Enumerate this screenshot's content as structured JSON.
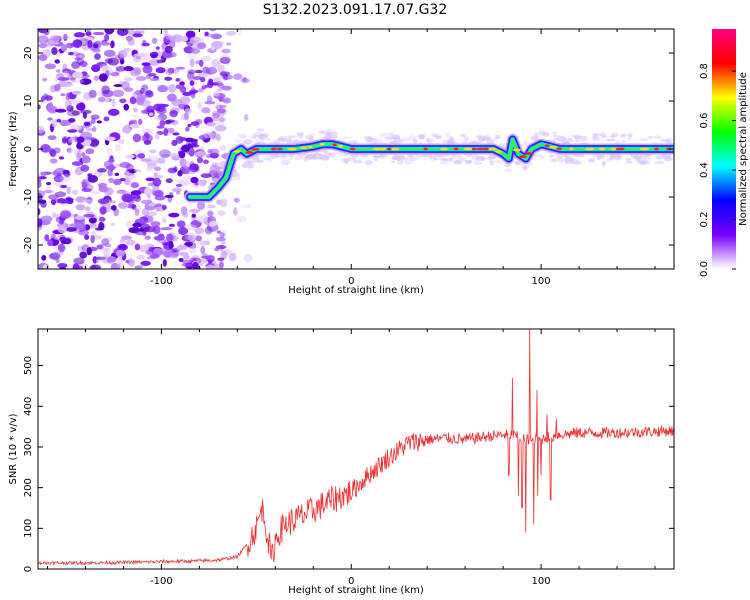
{
  "title": "S132.2023.091.17.07.G32",
  "chart_data": [
    {
      "type": "heatmap",
      "xlabel": "Height of straight line (km)",
      "ylabel": "Frequency (Hz)",
      "xlim": [
        -165,
        170
      ],
      "ylim": [
        -25,
        25
      ],
      "xticks": [
        -100,
        0,
        100
      ],
      "yticks": [
        -20,
        -10,
        0,
        10,
        20
      ],
      "colorbar": {
        "label": "Normalized spectral amplitude",
        "range": [
          0,
          0.97
        ],
        "ticks": [
          "0.0",
          "0.2",
          "0.4",
          "0.6",
          "0.8"
        ],
        "colormap": [
          "#ffffff",
          "#7a00ff",
          "#0000ff",
          "#00ffff",
          "#00ff00",
          "#ffff00",
          "#ff0000",
          "#ff0080"
        ]
      },
      "ridge": {
        "x": [
          -85,
          -75,
          -70,
          -66,
          -62,
          -58,
          -55,
          -50,
          -40,
          -30,
          -20,
          -15,
          -10,
          -5,
          0,
          20,
          40,
          60,
          75,
          80,
          83,
          85,
          88,
          92,
          95,
          100,
          110,
          130,
          150,
          170
        ],
        "y": [
          -10,
          -10,
          -8,
          -6,
          -1,
          0,
          -1,
          0,
          0,
          0,
          0.5,
          1,
          1,
          0.5,
          0,
          0,
          0,
          0,
          0,
          -1,
          -2,
          2,
          -1,
          -2,
          0,
          1,
          0,
          0,
          0,
          0
        ]
      }
    },
    {
      "type": "line",
      "xlabel": "Height of straight line (km)",
      "ylabel": "SNR (10 * v/v)",
      "xlim": [
        -165,
        170
      ],
      "ylim": [
        0,
        590
      ],
      "xticks": [
        -100,
        0,
        100
      ],
      "yticks": [
        0,
        100,
        200,
        300,
        400,
        500
      ],
      "color": "#ee3030",
      "envelope": {
        "x": [
          -165,
          -140,
          -120,
          -100,
          -80,
          -70,
          -60,
          -55,
          -50,
          -47,
          -45,
          -42,
          -40,
          -38,
          -35,
          -30,
          -20,
          -10,
          0,
          10,
          20,
          30,
          40,
          50,
          60,
          70,
          80,
          85,
          90,
          95,
          100,
          105,
          110,
          120,
          140,
          170
        ],
        "y": [
          15,
          15,
          16,
          18,
          20,
          22,
          30,
          60,
          100,
          150,
          110,
          20,
          70,
          90,
          110,
          120,
          145,
          170,
          190,
          235,
          275,
          310,
          318,
          322,
          318,
          325,
          330,
          330,
          320,
          315,
          320,
          325,
          330,
          335,
          335,
          340
        ]
      },
      "spikes": [
        {
          "x": 83,
          "lo": 230,
          "hi": 420
        },
        {
          "x": 85,
          "lo": 210,
          "hi": 470
        },
        {
          "x": 88,
          "lo": 180,
          "hi": 480
        },
        {
          "x": 90,
          "lo": 150,
          "hi": 510
        },
        {
          "x": 92,
          "lo": 90,
          "hi": 545
        },
        {
          "x": 94,
          "lo": 60,
          "hi": 590
        },
        {
          "x": 96,
          "lo": 110,
          "hi": 510
        },
        {
          "x": 98,
          "lo": 180,
          "hi": 440
        },
        {
          "x": 100,
          "lo": 230,
          "hi": 410
        },
        {
          "x": 103,
          "lo": 220,
          "hi": 380
        },
        {
          "x": 105,
          "lo": 170,
          "hi": 390
        },
        {
          "x": 108,
          "lo": 230,
          "hi": 370
        }
      ]
    }
  ]
}
